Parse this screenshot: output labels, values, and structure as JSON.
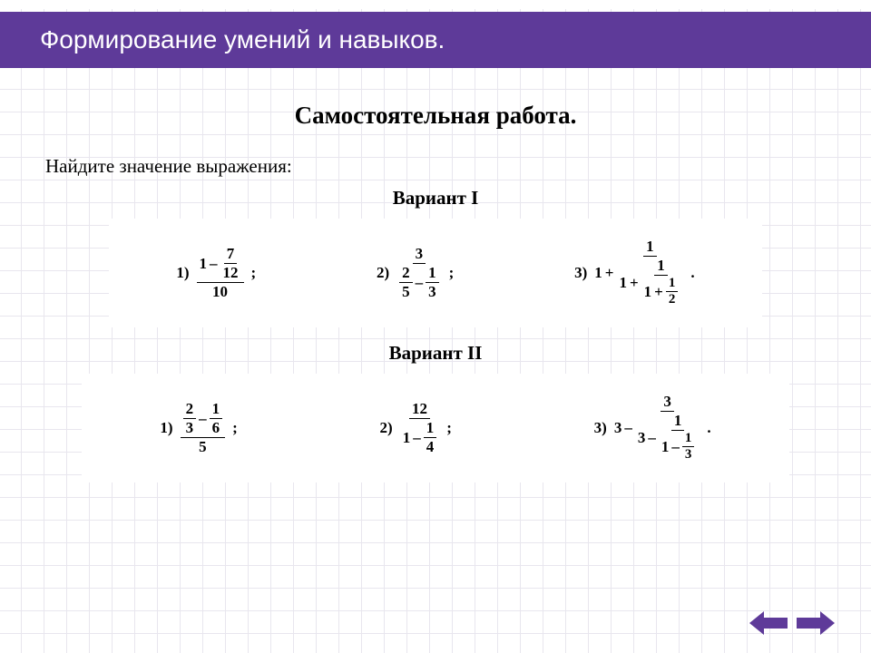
{
  "colors": {
    "accent": "#5e3a99",
    "grid": "#e8e6ee",
    "bg": "#ffffff",
    "text": "#000000"
  },
  "title_bar": {
    "text": "Формирование умений и навыков.",
    "font_family": "Arial",
    "font_size_pt": 21,
    "text_color": "#ffffff"
  },
  "heading": {
    "text": "Самостоятельная работа.",
    "font_size_pt": 20,
    "bold": true
  },
  "instruction": {
    "text": "Найдите значение выражения:",
    "font_size_pt": 16
  },
  "variant1": {
    "label": "Вариант I",
    "problems": [
      {
        "id": "v1p1",
        "number": "1)",
        "trailing": ";",
        "expr": {
          "type": "frac",
          "num": {
            "type": "diff",
            "a": "1",
            "b": {
              "type": "frac",
              "num": "7",
              "den": "12"
            }
          },
          "den": "10"
        }
      },
      {
        "id": "v1p2",
        "number": "2)",
        "trailing": ";",
        "expr": {
          "type": "frac",
          "num": "3",
          "den": {
            "type": "diff",
            "a": {
              "type": "frac",
              "num": "2",
              "den": "5"
            },
            "b": {
              "type": "frac",
              "num": "1",
              "den": "3"
            }
          }
        }
      },
      {
        "id": "v1p3",
        "number": "3)",
        "trailing": ".",
        "expr": {
          "type": "sum",
          "a": "1",
          "b": {
            "type": "frac",
            "num": "1",
            "den": {
              "type": "sum",
              "a": "1",
              "b": {
                "type": "frac",
                "num": "1",
                "den": {
                  "type": "sum",
                  "a": "1",
                  "b": {
                    "type": "frac",
                    "num": "1",
                    "den": "2"
                  }
                }
              }
            }
          }
        }
      }
    ]
  },
  "variant2": {
    "label": "Вариант II",
    "problems": [
      {
        "id": "v2p1",
        "number": "1)",
        "trailing": ";",
        "expr": {
          "type": "frac",
          "num": {
            "type": "diff",
            "a": {
              "type": "frac",
              "num": "2",
              "den": "3"
            },
            "b": {
              "type": "frac",
              "num": "1",
              "den": "6"
            }
          },
          "den": "5"
        }
      },
      {
        "id": "v2p2",
        "number": "2)",
        "trailing": ";",
        "expr": {
          "type": "frac",
          "num": "12",
          "den": {
            "type": "diff",
            "a": "1",
            "b": {
              "type": "frac",
              "num": "1",
              "den": "4"
            }
          }
        }
      },
      {
        "id": "v2p3",
        "number": "3)",
        "trailing": ".",
        "expr": {
          "type": "diff",
          "a": "3",
          "b": {
            "type": "frac",
            "num": "3",
            "den": {
              "type": "diff",
              "a": "3",
              "b": {
                "type": "frac",
                "num": "1",
                "den": {
                  "type": "diff",
                  "a": "1",
                  "b": {
                    "type": "frac",
                    "num": "1",
                    "den": "3"
                  }
                }
              }
            }
          }
        }
      }
    ]
  },
  "nav": {
    "prev_icon": "arrow-left",
    "next_icon": "arrow-right",
    "color": "#5e3a99"
  }
}
